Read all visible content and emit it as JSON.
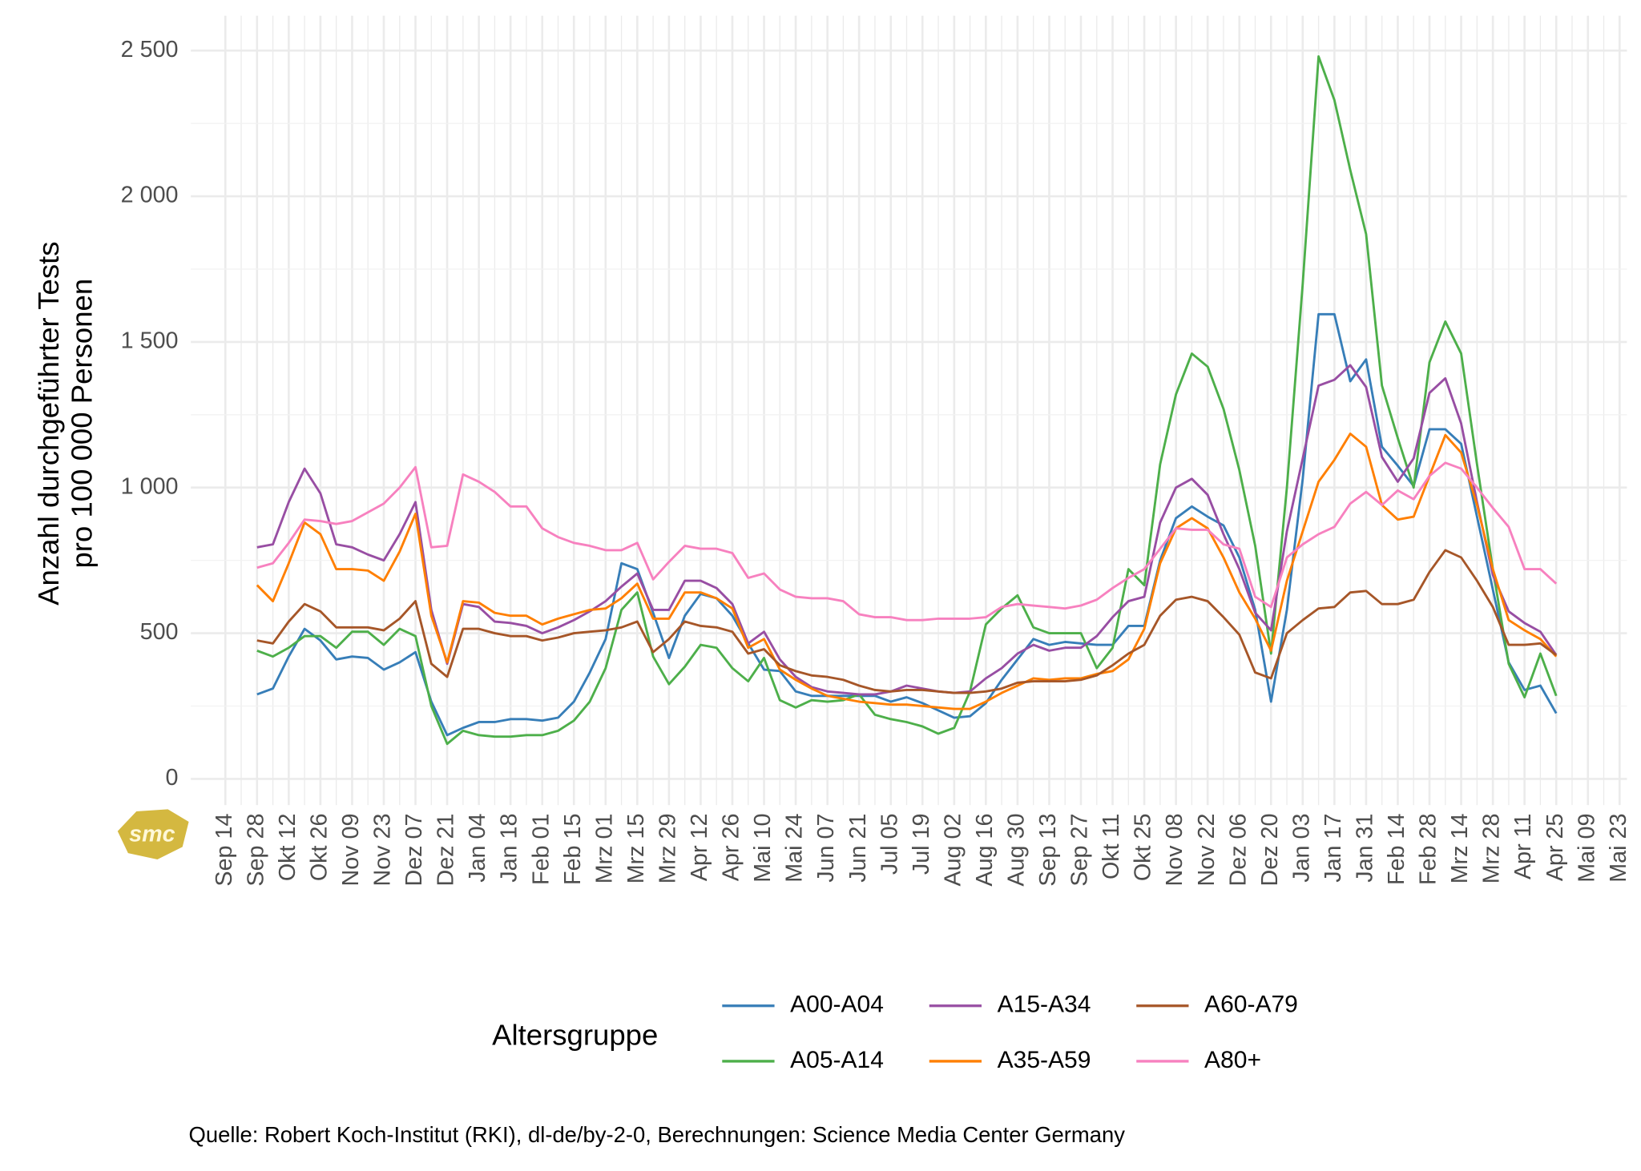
{
  "chart_data": {
    "type": "line",
    "ylabel": [
      "Anzahl durchgeführter Tests",
      "pro 100 000 Personen"
    ],
    "legend_title": "Altersgruppe",
    "caption": "Quelle: Robert Koch-Institut (RKI), dl-de/by-2-0, Berechnungen: Science Media Center Germany",
    "logo": "smc",
    "grid": true,
    "legend_position": "bottom",
    "ylim": [
      -90,
      2620
    ],
    "yticks": [
      0,
      500,
      {
        "value": 1000,
        "label": "1 000"
      },
      {
        "value": 1500,
        "label": "1 500"
      },
      {
        "value": 2000,
        "label": "2 000"
      },
      {
        "value": 2500,
        "label": "2 500"
      }
    ],
    "categories": [
      "Sep 14",
      null,
      "Sep 28",
      null,
      "Okt 12",
      null,
      "Okt 26",
      null,
      "Nov 09",
      null,
      "Nov 23",
      null,
      "Dez 07",
      null,
      "Dez 21",
      null,
      "Jan 04",
      null,
      "Jan 18",
      null,
      "Feb 01",
      null,
      "Feb 15",
      null,
      "Mrz 01",
      null,
      "Mrz 15",
      null,
      "Mrz 29",
      null,
      "Apr 12",
      null,
      "Apr 26",
      null,
      "Mai 10",
      null,
      "Mai 24",
      null,
      "Jun 07",
      null,
      "Jun 21",
      null,
      "Jul 05",
      null,
      "Jul 19",
      null,
      "Aug 02",
      null,
      "Aug 16",
      null,
      "Aug 30",
      null,
      "Sep 13",
      null,
      "Sep 27",
      null,
      "Okt 11",
      null,
      "Okt 25",
      null,
      "Nov 08",
      null,
      "Nov 22",
      null,
      "Dez 06",
      null,
      "Dez 20",
      null,
      "Jan 03",
      null,
      "Jan 17",
      null,
      "Jan 31",
      null,
      "Feb 14",
      null,
      "Feb 28",
      null,
      "Mrz 14",
      null,
      "Mrz 28",
      null,
      "Apr 11",
      null,
      "Apr 25",
      null,
      "Mai 09",
      null,
      "Mai 23"
    ],
    "series": [
      {
        "name": "A00-A04",
        "color": "#377eb8",
        "values": [
          null,
          null,
          290,
          310,
          420,
          515,
          475,
          410,
          420,
          415,
          375,
          400,
          435,
          265,
          150,
          175,
          195,
          195,
          205,
          205,
          200,
          210,
          265,
          365,
          480,
          740,
          720,
          570,
          415,
          560,
          635,
          620,
          560,
          465,
          375,
          370,
          300,
          285,
          285,
          285,
          285,
          285,
          265,
          280,
          260,
          235,
          210,
          215,
          260,
          340,
          410,
          480,
          460,
          470,
          465,
          460,
          460,
          525,
          525,
          750,
          895,
          935,
          900,
          870,
          760,
          580,
          265,
          580,
          1030,
          1595,
          1595,
          1365,
          1440,
          1140,
          1075,
          1005,
          1200,
          1200,
          1150,
          900,
          650,
          400,
          305,
          320,
          225,
          null,
          null,
          null,
          null
        ]
      },
      {
        "name": "A05-A14",
        "color": "#4daf4a",
        "values": [
          null,
          null,
          440,
          420,
          450,
          490,
          490,
          450,
          505,
          505,
          460,
          515,
          490,
          250,
          120,
          165,
          150,
          145,
          145,
          150,
          150,
          165,
          200,
          265,
          380,
          580,
          640,
          420,
          325,
          385,
          460,
          450,
          380,
          335,
          415,
          270,
          245,
          270,
          265,
          270,
          290,
          220,
          205,
          195,
          180,
          155,
          175,
          300,
          530,
          585,
          630,
          520,
          500,
          500,
          500,
          380,
          450,
          720,
          665,
          1080,
          1320,
          1460,
          1415,
          1270,
          1060,
          800,
          430,
          1000,
          1700,
          2480,
          2330,
          2090,
          1870,
          1350,
          1170,
          1000,
          1430,
          1570,
          1460,
          1080,
          720,
          395,
          280,
          430,
          285,
          null,
          null,
          null,
          null
        ]
      },
      {
        "name": "A15-A34",
        "color": "#984ea3",
        "values": [
          null,
          null,
          795,
          805,
          950,
          1065,
          980,
          805,
          795,
          770,
          750,
          840,
          950,
          580,
          395,
          600,
          590,
          540,
          535,
          525,
          500,
          520,
          545,
          575,
          610,
          660,
          705,
          580,
          580,
          680,
          680,
          655,
          600,
          465,
          505,
          410,
          350,
          315,
          300,
          295,
          290,
          290,
          300,
          320,
          310,
          300,
          295,
          300,
          345,
          380,
          430,
          460,
          440,
          450,
          450,
          490,
          555,
          610,
          625,
          880,
          1000,
          1030,
          975,
          840,
          720,
          570,
          510,
          850,
          1100,
          1350,
          1370,
          1420,
          1345,
          1105,
          1020,
          1100,
          1325,
          1375,
          1220,
          950,
          700,
          575,
          535,
          505,
          425,
          null,
          null,
          null,
          null
        ]
      },
      {
        "name": "A35-A59",
        "color": "#ff7f00",
        "values": [
          null,
          null,
          665,
          610,
          740,
          880,
          840,
          720,
          720,
          715,
          680,
          780,
          910,
          560,
          400,
          610,
          605,
          570,
          560,
          560,
          530,
          550,
          565,
          580,
          585,
          620,
          670,
          550,
          550,
          640,
          640,
          620,
          585,
          450,
          480,
          375,
          340,
          310,
          285,
          275,
          265,
          260,
          255,
          255,
          250,
          245,
          240,
          240,
          265,
          295,
          320,
          345,
          340,
          345,
          345,
          360,
          370,
          410,
          515,
          740,
          860,
          895,
          860,
          760,
          640,
          550,
          440,
          680,
          850,
          1020,
          1095,
          1185,
          1140,
          940,
          890,
          900,
          1040,
          1180,
          1120,
          940,
          720,
          545,
          510,
          480,
          420,
          null,
          null,
          null,
          null
        ]
      },
      {
        "name": "A60-A79",
        "color": "#a65628",
        "values": [
          null,
          null,
          475,
          465,
          540,
          600,
          575,
          520,
          520,
          520,
          510,
          550,
          610,
          395,
          350,
          515,
          515,
          500,
          490,
          490,
          475,
          485,
          500,
          505,
          510,
          520,
          540,
          435,
          480,
          540,
          525,
          520,
          505,
          430,
          445,
          390,
          370,
          355,
          350,
          340,
          320,
          305,
          300,
          305,
          305,
          300,
          295,
          295,
          300,
          310,
          330,
          335,
          335,
          335,
          340,
          355,
          390,
          430,
          460,
          560,
          615,
          625,
          610,
          555,
          495,
          365,
          345,
          500,
          545,
          585,
          590,
          640,
          645,
          600,
          600,
          615,
          710,
          785,
          760,
          680,
          590,
          460,
          460,
          465,
          425,
          null,
          null,
          null,
          null
        ]
      },
      {
        "name": "A80+",
        "color": "#f781bf",
        "values": [
          null,
          null,
          725,
          740,
          810,
          890,
          885,
          875,
          885,
          915,
          945,
          1000,
          1070,
          795,
          800,
          1045,
          1020,
          985,
          935,
          935,
          860,
          830,
          810,
          800,
          785,
          785,
          810,
          685,
          745,
          800,
          790,
          790,
          775,
          690,
          705,
          650,
          625,
          620,
          620,
          610,
          565,
          555,
          555,
          545,
          545,
          550,
          550,
          550,
          555,
          590,
          600,
          595,
          590,
          585,
          595,
          615,
          655,
          690,
          720,
          790,
          860,
          855,
          855,
          805,
          790,
          625,
          590,
          760,
          805,
          840,
          865,
          945,
          985,
          940,
          990,
          960,
          1040,
          1085,
          1065,
          1000,
          930,
          865,
          720,
          720,
          670,
          null,
          null,
          null,
          null
        ]
      }
    ]
  }
}
